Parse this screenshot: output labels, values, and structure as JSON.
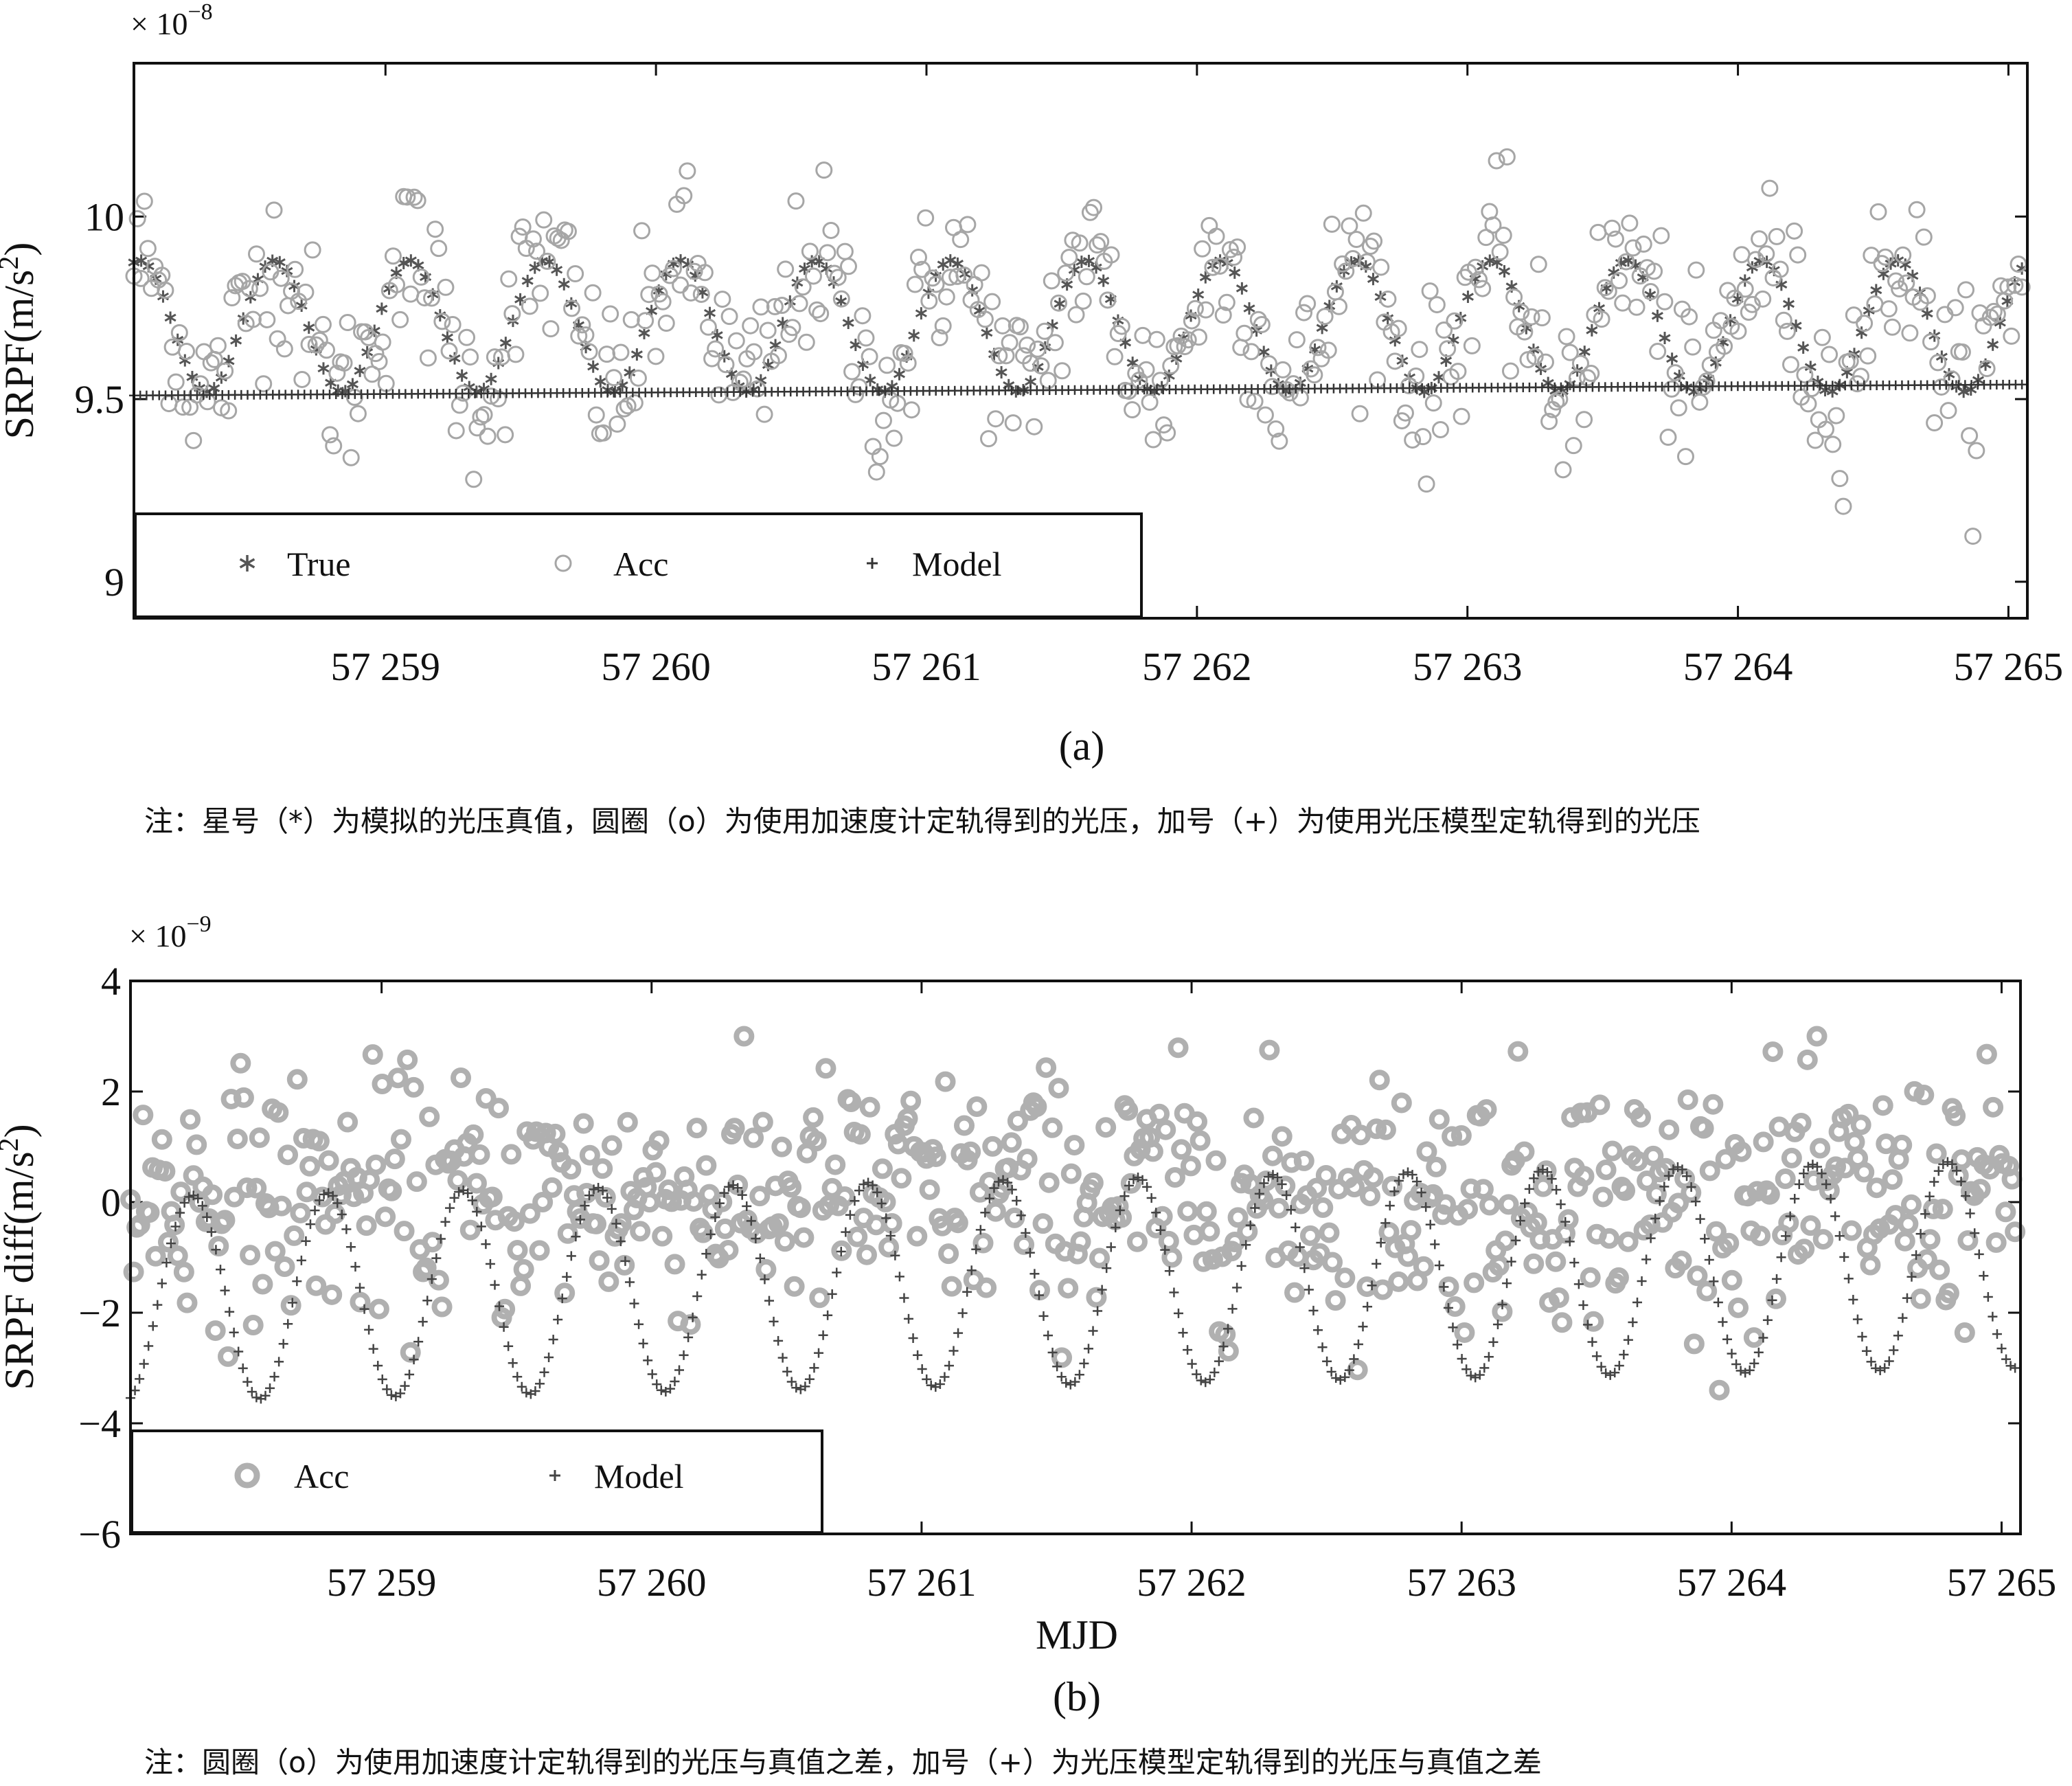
{
  "chart_data": [
    {
      "type": "scatter",
      "panel": "(a)",
      "title": "",
      "caption": "(a)",
      "note": "注：星号（*）为模拟的光压真值，圆圈（o）为使用加速度计定轨得到的光压，加号（+）为使用光压模型定轨得到的光压",
      "xlabel": "",
      "ylabel": "SRPF(m/s²)",
      "ylabel_base": "SRPF(m/s",
      "ylabel_sup": "2",
      "ylabel_end": ")",
      "y_exponent_prefix": "× 10",
      "y_exponent": "−8",
      "xlim": [
        57258.07,
        57265.07
      ],
      "ylim": [
        8.9,
        10.42
      ],
      "xticks": [
        57259,
        57260,
        57261,
        57262,
        57263,
        57264,
        57265
      ],
      "xtick_labels": [
        "57 259",
        "57 260",
        "57 261",
        "57 262",
        "57 263",
        "57 264",
        "57 265"
      ],
      "yticks": [
        9,
        9.5,
        10
      ],
      "ytick_labels": [
        "9",
        "9.5",
        "10"
      ],
      "legend": {
        "placement": "lower-left",
        "entries": [
          "True",
          "Acc",
          "Model"
        ]
      },
      "series": [
        {
          "name": "True",
          "marker": "asterisk",
          "color": "#555555",
          "model": {
            "mean": 9.7,
            "amplitude": 0.18,
            "period_days": 0.5,
            "peak_phase_mjd": 57258.59,
            "first_x": 57258.07,
            "last_x": 57265.05,
            "count": 260
          }
        },
        {
          "name": "Acc",
          "marker": "circle-open",
          "color": "#a6a6a6",
          "model": {
            "mean": 9.7,
            "amplitude": 0.18,
            "period_days": 0.5,
            "peak_phase_mjd": 57258.59,
            "noise_sd": 0.12,
            "first_x": 57258.07,
            "last_x": 57265.05,
            "count": 540
          }
        },
        {
          "name": "Model",
          "marker": "plus",
          "color": "#333333",
          "model": {
            "y_start": 9.51,
            "y_end": 9.54,
            "first_x": 57258.07,
            "last_x": 57265.05,
            "count": 300
          }
        }
      ]
    },
    {
      "type": "scatter",
      "panel": "(b)",
      "title": "",
      "caption": "(b)",
      "note": "注：圆圈（o）为使用加速度计定轨得到的光压与真值之差，加号（+）为光压模型定轨得到的光压与真值之差",
      "xlabel": "MJD",
      "ylabel": "SRPF diff(m/s²)",
      "ylabel_base": "SRPF diff(m/s",
      "ylabel_sup": "2",
      "ylabel_end": ")",
      "y_exponent_prefix": "× 10",
      "y_exponent": "−9",
      "xlim": [
        57258.07,
        57265.07
      ],
      "ylim": [
        -6,
        4
      ],
      "xticks": [
        57259,
        57260,
        57261,
        57262,
        57263,
        57264,
        57265
      ],
      "xtick_labels": [
        "57 259",
        "57 260",
        "57 261",
        "57 262",
        "57 263",
        "57 264",
        "57 265"
      ],
      "yticks": [
        -6,
        -4,
        -2,
        0,
        2,
        4
      ],
      "ytick_labels": [
        "−6",
        "−4",
        "−2",
        "0",
        "2",
        "4"
      ],
      "legend": {
        "placement": "lower-left",
        "entries": [
          "Acc",
          "Model"
        ]
      },
      "series": [
        {
          "name": "Acc",
          "marker": "circle-thick",
          "color": "#b0b0b0",
          "model": {
            "mean": 0.1,
            "noise_sd": 1.1,
            "first_x": 57258.07,
            "last_x": 57265.05,
            "count": 600
          }
        },
        {
          "name": "Model",
          "marker": "plus",
          "color": "#444444",
          "model": {
            "max_start": 0.1,
            "max_end": 0.75,
            "min_start": -3.6,
            "min_end": -3.0,
            "period_days": 0.5,
            "peak_phase_mjd": 57258.3,
            "first_x": 57258.07,
            "last_x": 57265.05,
            "count": 420
          }
        }
      ]
    }
  ]
}
